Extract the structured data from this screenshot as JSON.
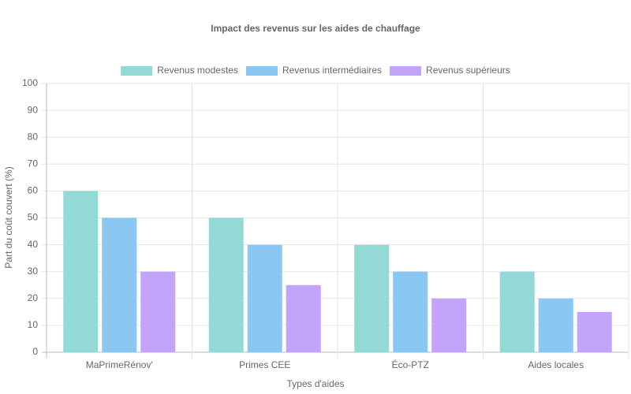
{
  "chart_data": {
    "type": "bar",
    "title": "Impact des revenus sur les aides de chauffage",
    "x_label": "Types d'aides",
    "y_label": "Part du coût couvert (%)",
    "categories": [
      "MaPrimeRénov'",
      "Primes CEE",
      "Éco-PTZ",
      "Aides locales"
    ],
    "series": [
      {
        "name": "Revenus modestes",
        "color": "#93dad6",
        "values": [
          60,
          50,
          40,
          30
        ]
      },
      {
        "name": "Revenus intermédiaires",
        "color": "#8ac7f2",
        "values": [
          50,
          40,
          30,
          20
        ]
      },
      {
        "name": "Revenus supérieurs",
        "color": "#c4a3fb",
        "values": [
          30,
          25,
          20,
          15
        ]
      }
    ],
    "ylim": [
      0,
      100
    ],
    "yticks": [
      0,
      10,
      20,
      30,
      40,
      50,
      60,
      70,
      80,
      90,
      100
    ],
    "grid": true,
    "legend": "top"
  }
}
